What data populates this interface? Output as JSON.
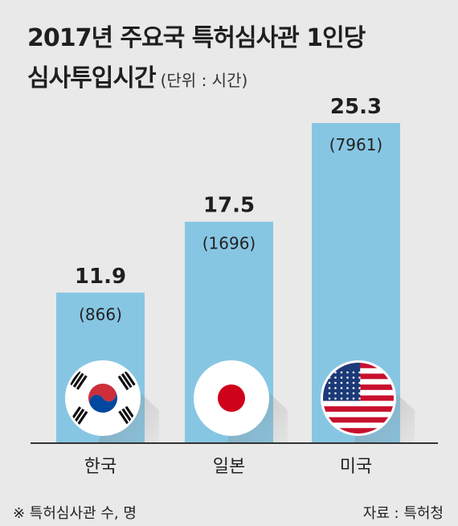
{
  "title_line1": "2017년 주요국 특허심사관 1인당",
  "title_line2": "심사투입시간",
  "unit": "(단위 : 시간)",
  "footnote": "※ 특허심사관 수, 명",
  "source": "자료 : 특허청",
  "colors": {
    "bar": "#87c6e3",
    "background": "#e9e9e9",
    "axis": "#333333"
  },
  "chart_data": {
    "type": "bar",
    "categories": [
      "한국",
      "일본",
      "미국"
    ],
    "values": [
      11.9,
      17.5,
      25.3
    ],
    "value_labels": [
      "11.9",
      "17.5",
      "25.3"
    ],
    "examiners": [
      "(866)",
      "(1696)",
      "(7961)"
    ],
    "flags": [
      "south-korea-flag-icon",
      "japan-flag-icon",
      "usa-flag-icon"
    ],
    "ylim": [
      0,
      30
    ]
  }
}
